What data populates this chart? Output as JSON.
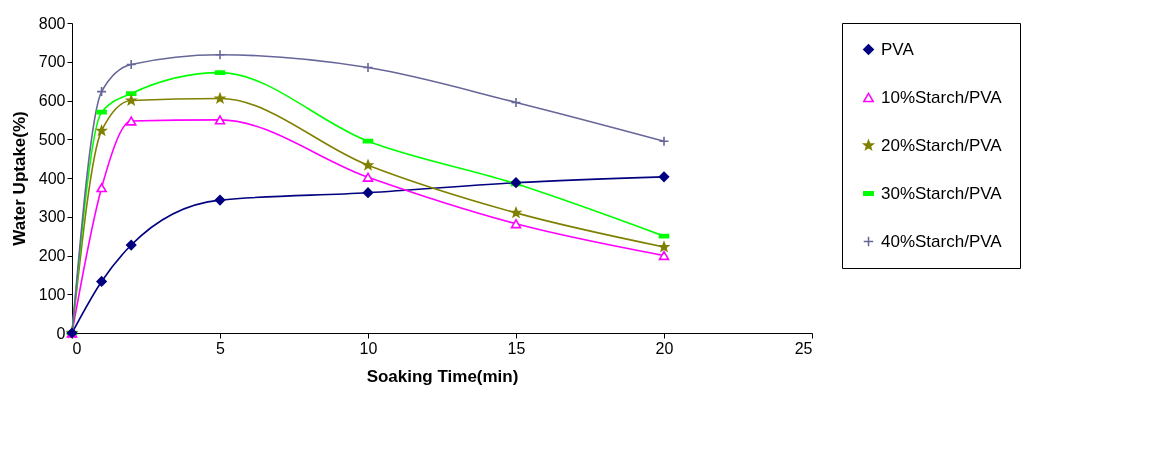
{
  "chart_data": {
    "type": "line",
    "xlabel": "Soaking Time(min)",
    "ylabel": "Water Uptake(%)",
    "x": [
      0,
      1,
      2,
      5,
      10,
      15,
      20
    ],
    "series": [
      {
        "name": "PVA",
        "color": "#000080",
        "marker": "diamond",
        "values": [
          0,
          133,
          227,
          343,
          362,
          388,
          403
        ]
      },
      {
        "name": "10%Starch/PVA",
        "color": "#ff00ff",
        "marker": "triangle",
        "values": [
          0,
          375,
          547,
          550,
          402,
          282,
          200
        ]
      },
      {
        "name": "20%Starch/PVA",
        "color": "#808000",
        "marker": "star",
        "values": [
          0,
          522,
          600,
          605,
          433,
          310,
          222
        ]
      },
      {
        "name": "30%Starch/PVA",
        "color": "#00ff00",
        "marker": "square",
        "values": [
          0,
          570,
          618,
          672,
          495,
          385,
          250
        ]
      },
      {
        "name": "40%Starch/PVA",
        "color": "#666699",
        "marker": "cross",
        "values": [
          0,
          623,
          693,
          718,
          685,
          595,
          495
        ]
      }
    ],
    "xlim": [
      0,
      25
    ],
    "xticks": [
      0,
      5,
      10,
      15,
      20,
      25
    ],
    "ylim": [
      0,
      800
    ],
    "yticks": [
      0,
      100,
      200,
      300,
      400,
      500,
      600,
      700,
      800
    ],
    "grid": false,
    "legend": "right",
    "line_style": "solid"
  }
}
